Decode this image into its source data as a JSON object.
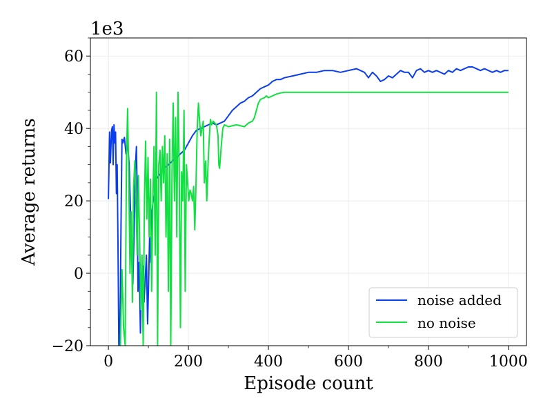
{
  "chart_data": {
    "type": "line",
    "xlabel": "Episode count",
    "ylabel": "Average returns",
    "y_offset_label": "1e3",
    "xlim": [
      -45,
      1045
    ],
    "ylim": [
      -20,
      65
    ],
    "x_ticks": [
      "0",
      "200",
      "400",
      "600",
      "800",
      "1000"
    ],
    "y_ticks": [
      "−20",
      "0",
      "20",
      "40",
      "60"
    ],
    "x_tick_values": [
      0,
      200,
      400,
      600,
      800,
      1000
    ],
    "y_tick_values": [
      -20,
      0,
      20,
      40,
      60
    ],
    "grid": true,
    "legend_position": "bottom-right",
    "series": [
      {
        "name": "noise added",
        "color": "#0a3cf0",
        "points": [
          [
            0,
            20.5
          ],
          [
            3,
            39
          ],
          [
            5,
            30.5
          ],
          [
            8,
            39.5
          ],
          [
            10,
            40.5
          ],
          [
            12,
            30
          ],
          [
            14,
            41
          ],
          [
            16,
            36
          ],
          [
            18,
            39
          ],
          [
            20,
            22
          ],
          [
            22,
            30
          ],
          [
            24,
            8
          ],
          [
            26,
            -20
          ],
          [
            28,
            -20
          ],
          [
            30,
            -5
          ],
          [
            32,
            17.5
          ],
          [
            34,
            37
          ],
          [
            36,
            36
          ],
          [
            40,
            37.5
          ],
          [
            44,
            33
          ],
          [
            48,
            36
          ],
          [
            52,
            30
          ],
          [
            55,
            18
          ],
          [
            58,
            5
          ],
          [
            61,
            -3
          ],
          [
            64,
            10
          ],
          [
            67,
            28
          ],
          [
            70,
            35
          ],
          [
            72,
            22
          ],
          [
            74,
            -5
          ],
          [
            77,
            3
          ],
          [
            80,
            -16.5
          ],
          [
            83,
            0
          ],
          [
            86,
            2
          ],
          [
            89,
            -8
          ],
          [
            92,
            -2
          ],
          [
            95,
            5
          ],
          [
            98,
            -14
          ],
          [
            100,
            -5
          ],
          [
            103,
            10
          ],
          [
            106,
            3
          ],
          [
            109,
            17
          ],
          [
            112,
            20
          ],
          [
            116,
            22
          ],
          [
            120,
            26
          ],
          [
            130,
            27.5
          ],
          [
            140,
            29
          ],
          [
            150,
            30
          ],
          [
            160,
            31
          ],
          [
            170,
            32
          ],
          [
            180,
            33
          ],
          [
            190,
            34
          ],
          [
            200,
            36
          ],
          [
            210,
            38
          ],
          [
            220,
            39.5
          ],
          [
            230,
            40
          ],
          [
            240,
            40.5
          ],
          [
            250,
            41
          ],
          [
            260,
            41.5
          ],
          [
            270,
            41
          ],
          [
            280,
            41.5
          ],
          [
            290,
            42
          ],
          [
            300,
            43.5
          ],
          [
            310,
            45
          ],
          [
            320,
            46
          ],
          [
            330,
            47
          ],
          [
            340,
            47.5
          ],
          [
            350,
            48.5
          ],
          [
            360,
            49
          ],
          [
            370,
            50
          ],
          [
            380,
            51
          ],
          [
            390,
            51.5
          ],
          [
            400,
            52
          ],
          [
            410,
            53
          ],
          [
            420,
            53.5
          ],
          [
            430,
            53.5
          ],
          [
            440,
            54
          ],
          [
            460,
            54.5
          ],
          [
            480,
            55
          ],
          [
            500,
            55.5
          ],
          [
            520,
            55.5
          ],
          [
            540,
            56
          ],
          [
            560,
            56
          ],
          [
            580,
            55.5
          ],
          [
            600,
            56
          ],
          [
            620,
            56.5
          ],
          [
            640,
            55.5
          ],
          [
            650,
            54
          ],
          [
            660,
            55.5
          ],
          [
            670,
            54.5
          ],
          [
            680,
            53
          ],
          [
            690,
            53.5
          ],
          [
            700,
            54.5
          ],
          [
            710,
            54
          ],
          [
            720,
            55
          ],
          [
            730,
            56
          ],
          [
            740,
            55.5
          ],
          [
            750,
            55.5
          ],
          [
            760,
            54
          ],
          [
            770,
            56
          ],
          [
            780,
            56.5
          ],
          [
            790,
            55.5
          ],
          [
            800,
            56
          ],
          [
            810,
            55.5
          ],
          [
            820,
            56
          ],
          [
            830,
            55.5
          ],
          [
            840,
            55
          ],
          [
            850,
            56
          ],
          [
            860,
            55.5
          ],
          [
            870,
            56.5
          ],
          [
            880,
            56
          ],
          [
            890,
            56.5
          ],
          [
            900,
            57
          ],
          [
            910,
            57
          ],
          [
            920,
            56.5
          ],
          [
            930,
            56
          ],
          [
            940,
            56.5
          ],
          [
            950,
            56
          ],
          [
            960,
            55.5
          ],
          [
            970,
            56
          ],
          [
            980,
            55.5
          ],
          [
            990,
            56
          ],
          [
            1000,
            56
          ]
        ]
      },
      {
        "name": "no noise",
        "color": "#10e040",
        "points": [
          [
            30,
            -20
          ],
          [
            34,
            1
          ],
          [
            38,
            -15
          ],
          [
            42,
            -20
          ],
          [
            45,
            30
          ],
          [
            48,
            45.5
          ],
          [
            51,
            26
          ],
          [
            54,
            0
          ],
          [
            57,
            17
          ],
          [
            60,
            -8
          ],
          [
            63,
            24
          ],
          [
            66,
            31
          ],
          [
            69,
            19
          ],
          [
            72,
            5
          ],
          [
            75,
            27
          ],
          [
            78,
            10
          ],
          [
            81,
            -10
          ],
          [
            84,
            5
          ],
          [
            87,
            -20
          ],
          [
            90,
            20
          ],
          [
            93,
            36.5
          ],
          [
            96,
            15
          ],
          [
            99,
            32
          ],
          [
            102,
            10
          ],
          [
            105,
            26
          ],
          [
            108,
            -5
          ],
          [
            111,
            20
          ],
          [
            114,
            35
          ],
          [
            117,
            5
          ],
          [
            120,
            50
          ],
          [
            123,
            -20
          ],
          [
            126,
            30
          ],
          [
            129,
            34
          ],
          [
            132,
            20
          ],
          [
            135,
            35
          ],
          [
            138,
            25
          ],
          [
            141,
            38
          ],
          [
            144,
            10
          ],
          [
            147,
            33
          ],
          [
            150,
            -5
          ],
          [
            153,
            37
          ],
          [
            156,
            -20
          ],
          [
            159,
            28
          ],
          [
            162,
            47
          ],
          [
            165,
            20
          ],
          [
            168,
            43
          ],
          [
            171,
            10
          ],
          [
            174,
            50
          ],
          [
            177,
            30
          ],
          [
            180,
            -15
          ],
          [
            183,
            28
          ],
          [
            186,
            20
          ],
          [
            189,
            45
          ],
          [
            192,
            -5
          ],
          [
            195,
            30
          ],
          [
            198,
            25
          ],
          [
            201,
            20
          ],
          [
            204,
            23
          ],
          [
            207,
            22
          ],
          [
            210,
            20
          ],
          [
            213,
            24
          ],
          [
            216,
            12
          ],
          [
            219,
            25
          ],
          [
            222,
            40
          ],
          [
            225,
            47
          ],
          [
            228,
            42
          ],
          [
            231,
            38
          ],
          [
            234,
            40
          ],
          [
            237,
            42
          ],
          [
            240,
            25
          ],
          [
            243,
            31
          ],
          [
            246,
            20
          ],
          [
            249,
            30
          ],
          [
            252,
            37
          ],
          [
            255,
            42.5
          ],
          [
            258,
            41
          ],
          [
            262,
            42
          ],
          [
            266,
            41.5
          ],
          [
            270,
            41
          ],
          [
            274,
            38
          ],
          [
            276,
            30
          ],
          [
            278,
            29
          ],
          [
            282,
            35
          ],
          [
            286,
            40
          ],
          [
            290,
            41
          ],
          [
            300,
            40.5
          ],
          [
            320,
            41
          ],
          [
            340,
            40.5
          ],
          [
            350,
            41.5
          ],
          [
            360,
            42
          ],
          [
            365,
            43
          ],
          [
            370,
            45
          ],
          [
            375,
            47
          ],
          [
            380,
            48
          ],
          [
            390,
            48.5
          ],
          [
            395,
            49
          ],
          [
            400,
            48.5
          ],
          [
            410,
            49
          ],
          [
            420,
            49.5
          ],
          [
            430,
            49.8
          ],
          [
            440,
            50
          ],
          [
            1000,
            50
          ]
        ]
      }
    ]
  }
}
